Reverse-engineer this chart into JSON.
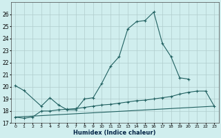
{
  "xlabel": "Humidex (Indice chaleur)",
  "x": [
    0,
    1,
    2,
    3,
    4,
    5,
    6,
    7,
    8,
    9,
    10,
    11,
    12,
    13,
    14,
    15,
    16,
    17,
    18,
    19,
    20,
    21,
    22,
    23
  ],
  "line1_x": [
    0,
    1,
    3,
    4,
    5,
    6,
    7,
    8,
    9,
    10,
    11,
    12,
    13,
    14,
    15,
    16,
    17,
    18,
    19,
    20
  ],
  "line1_y": [
    20.1,
    19.7,
    18.4,
    19.1,
    18.5,
    18.1,
    18.1,
    19.0,
    19.1,
    20.3,
    21.7,
    22.5,
    24.8,
    25.4,
    25.5,
    26.2,
    23.6,
    22.5,
    20.75,
    20.65
  ],
  "line2_x": [
    0,
    1,
    2,
    3,
    4,
    5,
    6,
    7,
    8,
    9,
    10,
    11,
    12,
    13,
    14,
    15,
    16,
    17,
    18,
    19,
    20,
    21,
    22,
    23
  ],
  "line2_y": [
    17.5,
    17.4,
    17.5,
    18.0,
    18.0,
    18.1,
    18.15,
    18.2,
    18.3,
    18.4,
    18.5,
    18.55,
    18.65,
    18.75,
    18.85,
    18.9,
    19.0,
    19.1,
    19.2,
    19.4,
    19.55,
    19.65,
    19.65,
    18.4
  ],
  "line3_x": [
    0,
    23
  ],
  "line3_y": [
    17.5,
    18.4
  ],
  "line_color": "#206060",
  "bg_color": "#d0eeee",
  "grid_color": "#b0cccc",
  "ylim": [
    17,
    27
  ],
  "yticks": [
    17,
    18,
    19,
    20,
    21,
    22,
    23,
    24,
    25,
    26
  ],
  "xticks": [
    0,
    1,
    2,
    3,
    4,
    5,
    6,
    7,
    8,
    9,
    10,
    11,
    12,
    13,
    14,
    15,
    16,
    17,
    18,
    19,
    20,
    21,
    22,
    23
  ],
  "xlim": [
    -0.5,
    23.5
  ]
}
